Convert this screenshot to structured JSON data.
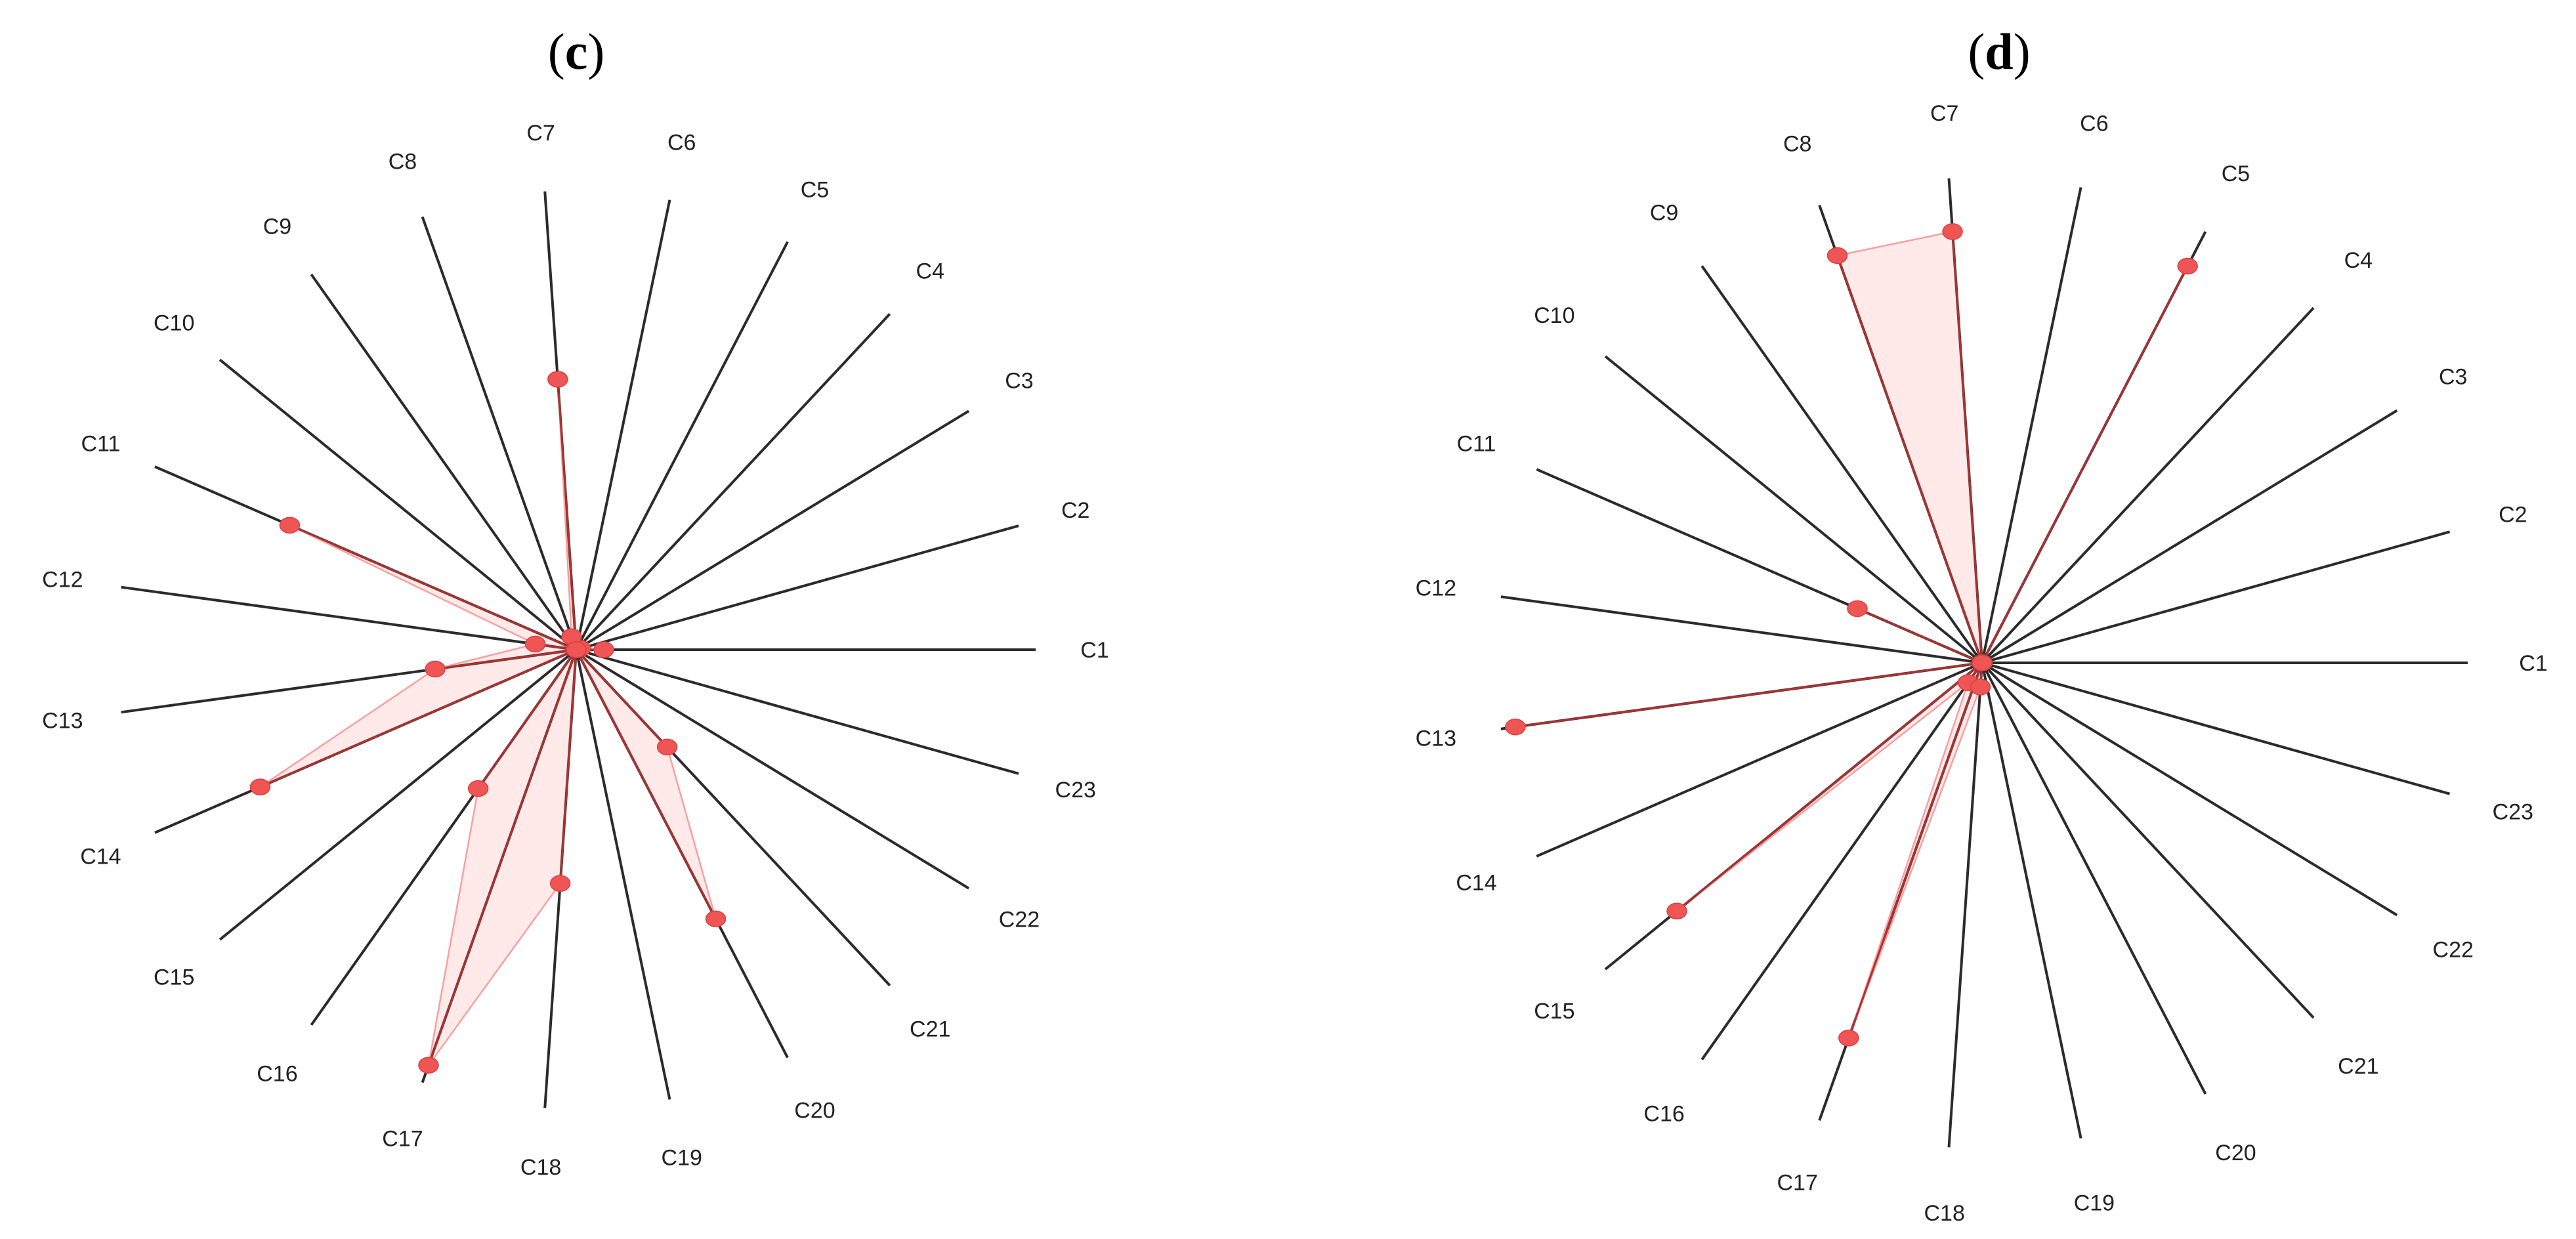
{
  "chart_data": [
    {
      "type": "radar",
      "panel_label": "c",
      "categories": [
        "C1",
        "C2",
        "C3",
        "C4",
        "C5",
        "C6",
        "C7",
        "C8",
        "C9",
        "C10",
        "C11",
        "C12",
        "C13",
        "C14",
        "C15",
        "C16",
        "C17",
        "C18",
        "C19",
        "C20",
        "C21",
        "C22",
        "C23"
      ],
      "values": [
        0.06,
        0.01,
        0.0,
        0.0,
        0.0,
        0.0,
        0.59,
        0.03,
        0.0,
        0.0,
        0.68,
        0.09,
        0.31,
        0.75,
        0.0,
        0.37,
        0.96,
        0.51,
        0.0,
        0.66,
        0.29,
        0.0,
        0.0
      ],
      "ylim": [
        0,
        1
      ],
      "grid": false,
      "legend": false,
      "colors": {
        "fill": "#fde3e3",
        "marker": "#f05555",
        "edge": "#b03030",
        "spoke": "#2b2b2b"
      }
    },
    {
      "type": "radar",
      "panel_label": "d",
      "categories": [
        "C1",
        "C2",
        "C3",
        "C4",
        "C5",
        "C6",
        "C7",
        "C8",
        "C9",
        "C10",
        "C11",
        "C12",
        "C13",
        "C14",
        "C15",
        "C16",
        "C17",
        "C18",
        "C19",
        "C20",
        "C21",
        "C22",
        "C23"
      ],
      "values": [
        0.0,
        0.0,
        0.0,
        0.0,
        0.92,
        0.0,
        0.89,
        0.89,
        0.0,
        0.0,
        0.28,
        0.0,
        0.97,
        0.0,
        0.81,
        0.05,
        0.82,
        0.05,
        0.0,
        0.0,
        0.0,
        0.0,
        0.0
      ],
      "ylim": [
        0,
        1
      ],
      "grid": false,
      "legend": false,
      "colors": {
        "fill": "#fde3e3",
        "marker": "#f05555",
        "edge": "#b03030",
        "spoke": "#2b2b2b"
      }
    }
  ]
}
